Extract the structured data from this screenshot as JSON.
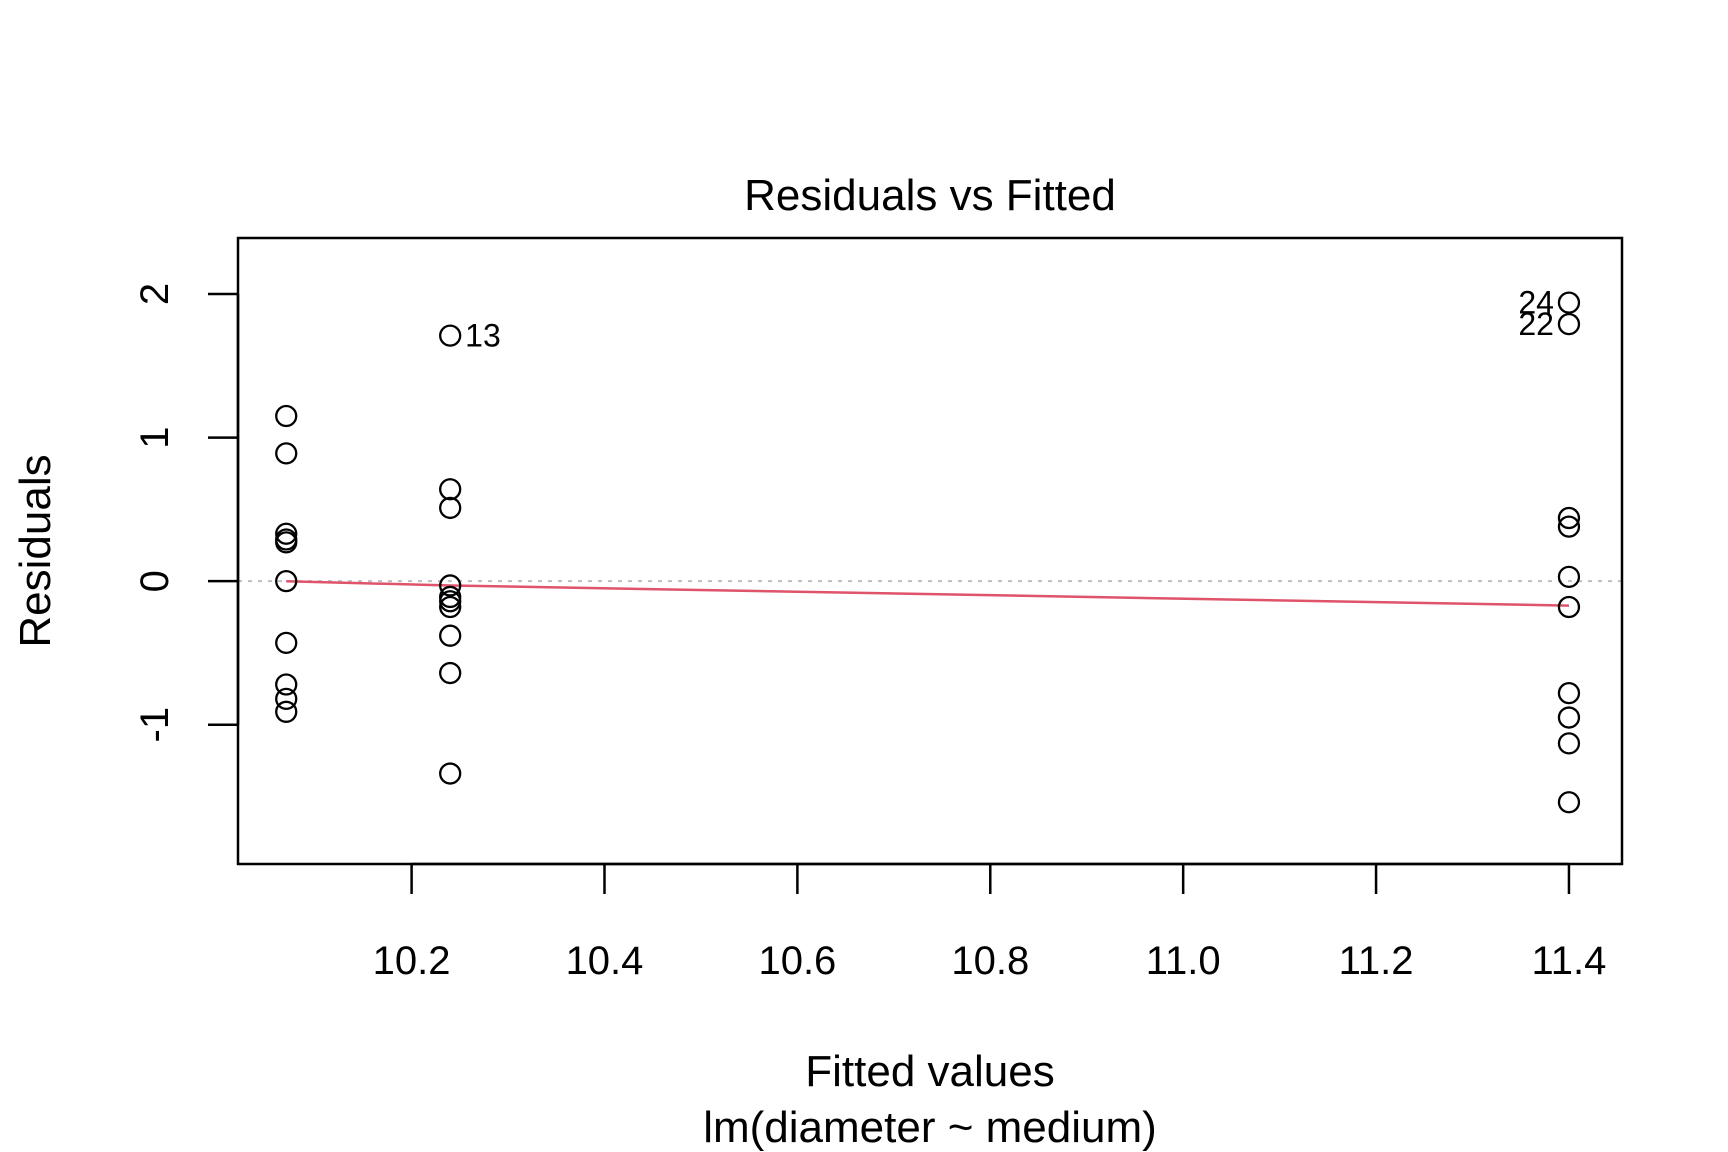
{
  "chart_data": {
    "type": "scatter",
    "title": "Residuals vs Fitted",
    "xlabel": "Fitted values",
    "subtitle": "lm(diameter ~ medium)",
    "ylabel": "Residuals",
    "xlim": [
      10.02,
      11.455
    ],
    "ylim": [
      -1.97,
      2.39
    ],
    "xticks": [
      10.2,
      10.4,
      10.6,
      10.8,
      11.0,
      11.2,
      11.4
    ],
    "xtick_labels": [
      "10.2",
      "10.4",
      "10.6",
      "10.8",
      "11.0",
      "11.2",
      "11.4"
    ],
    "yticks": [
      -1,
      0,
      1,
      2
    ],
    "ytick_labels": [
      "-1",
      "0",
      "1",
      "2"
    ],
    "grid": false,
    "legend": "none",
    "point_color": "#000000",
    "smooth_color": "#DF536B",
    "zero_line_color": "#BEBEBE",
    "points": [
      {
        "x": 10.07,
        "y": 1.15
      },
      {
        "x": 10.07,
        "y": 0.89
      },
      {
        "x": 10.07,
        "y": 0.33
      },
      {
        "x": 10.07,
        "y": 0.29
      },
      {
        "x": 10.07,
        "y": 0.27
      },
      {
        "x": 10.07,
        "y": 0.0
      },
      {
        "x": 10.07,
        "y": -0.43
      },
      {
        "x": 10.07,
        "y": -0.72
      },
      {
        "x": 10.07,
        "y": -0.82
      },
      {
        "x": 10.07,
        "y": -0.91
      },
      {
        "x": 10.24,
        "y": 1.71,
        "label": "13"
      },
      {
        "x": 10.24,
        "y": 0.64
      },
      {
        "x": 10.24,
        "y": 0.51
      },
      {
        "x": 10.24,
        "y": -0.03
      },
      {
        "x": 10.24,
        "y": -0.11
      },
      {
        "x": 10.24,
        "y": -0.14
      },
      {
        "x": 10.24,
        "y": -0.18
      },
      {
        "x": 10.24,
        "y": -0.38
      },
      {
        "x": 10.24,
        "y": -0.64
      },
      {
        "x": 10.24,
        "y": -1.34
      },
      {
        "x": 11.4,
        "y": 1.94,
        "label": "24"
      },
      {
        "x": 11.4,
        "y": 1.79,
        "label": "22"
      },
      {
        "x": 11.4,
        "y": 0.44
      },
      {
        "x": 11.4,
        "y": 0.38
      },
      {
        "x": 11.4,
        "y": 0.03
      },
      {
        "x": 11.4,
        "y": -0.18
      },
      {
        "x": 11.4,
        "y": -0.78
      },
      {
        "x": 11.4,
        "y": -0.95
      },
      {
        "x": 11.4,
        "y": -1.13
      },
      {
        "x": 11.4,
        "y": -1.54
      }
    ],
    "smooth_line": [
      {
        "x": 10.07,
        "y": 0.0
      },
      {
        "x": 10.24,
        "y": -0.03
      },
      {
        "x": 11.4,
        "y": -0.17
      }
    ]
  }
}
